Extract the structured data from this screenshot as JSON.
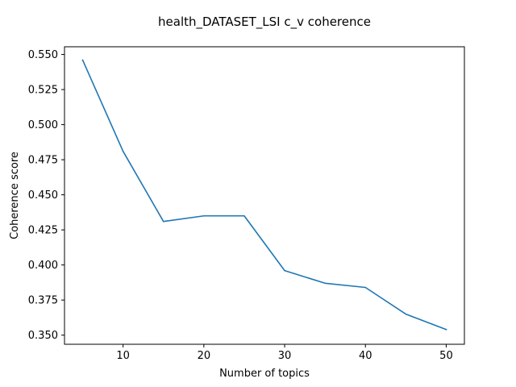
{
  "chart_data": {
    "type": "line",
    "title": "health_DATASET_LSI c_v coherence",
    "xlabel": "Number of topics",
    "ylabel": "Coherence score",
    "x": [
      5,
      10,
      15,
      20,
      25,
      30,
      35,
      40,
      45,
      50
    ],
    "series": [
      {
        "values": [
          0.546,
          0.481,
          0.431,
          0.435,
          0.435,
          0.396,
          0.387,
          0.384,
          0.365,
          0.354
        ],
        "color": "#1f77b4"
      }
    ],
    "xlim": [
      2.75,
      52.25
    ],
    "ylim": [
      0.3435,
      0.5555
    ],
    "xticks": [
      10,
      20,
      30,
      40,
      50
    ],
    "yticks": [
      0.35,
      0.375,
      0.4,
      0.425,
      0.45,
      0.475,
      0.5,
      0.525,
      0.55
    ],
    "ytick_labels": [
      "0.350",
      "0.375",
      "0.400",
      "0.425",
      "0.450",
      "0.475",
      "0.500",
      "0.525",
      "0.550"
    ],
    "grid": false,
    "legend": "none"
  }
}
